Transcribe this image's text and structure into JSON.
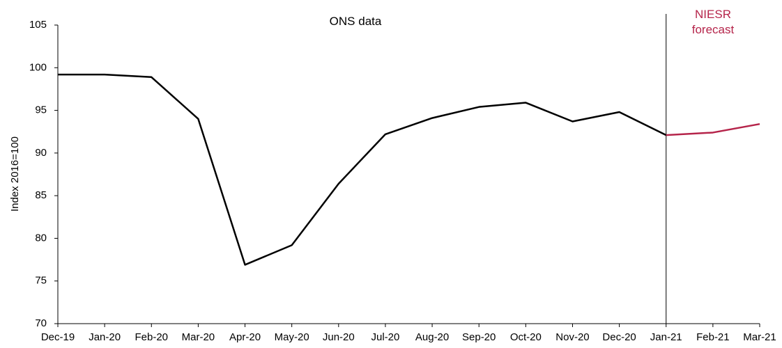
{
  "chart_data": {
    "type": "line",
    "y_label": "Index 2016=100",
    "categories": [
      "Dec-19",
      "Jan-20",
      "Feb-20",
      "Mar-20",
      "Apr-20",
      "May-20",
      "Jun-20",
      "Jul-20",
      "Aug-20",
      "Sep-20",
      "Oct-20",
      "Nov-20",
      "Dec-20",
      "Jan-21",
      "Feb-21",
      "Mar-21"
    ],
    "series": [
      {
        "name": "ONS data",
        "color": "#000000",
        "values": [
          99.2,
          99.2,
          98.9,
          94.0,
          76.9,
          79.2,
          86.4,
          92.2,
          94.1,
          95.4,
          95.9,
          93.7,
          94.8,
          92.1,
          null,
          null
        ]
      },
      {
        "name": "NIESR forecast",
        "color": "#b5244a",
        "values": [
          null,
          null,
          null,
          null,
          null,
          null,
          null,
          null,
          null,
          null,
          null,
          null,
          null,
          92.1,
          92.4,
          93.4
        ]
      }
    ],
    "ylim": [
      70,
      105
    ],
    "yticks": [
      70,
      75,
      80,
      85,
      90,
      95,
      100,
      105
    ],
    "grid": false
  }
}
